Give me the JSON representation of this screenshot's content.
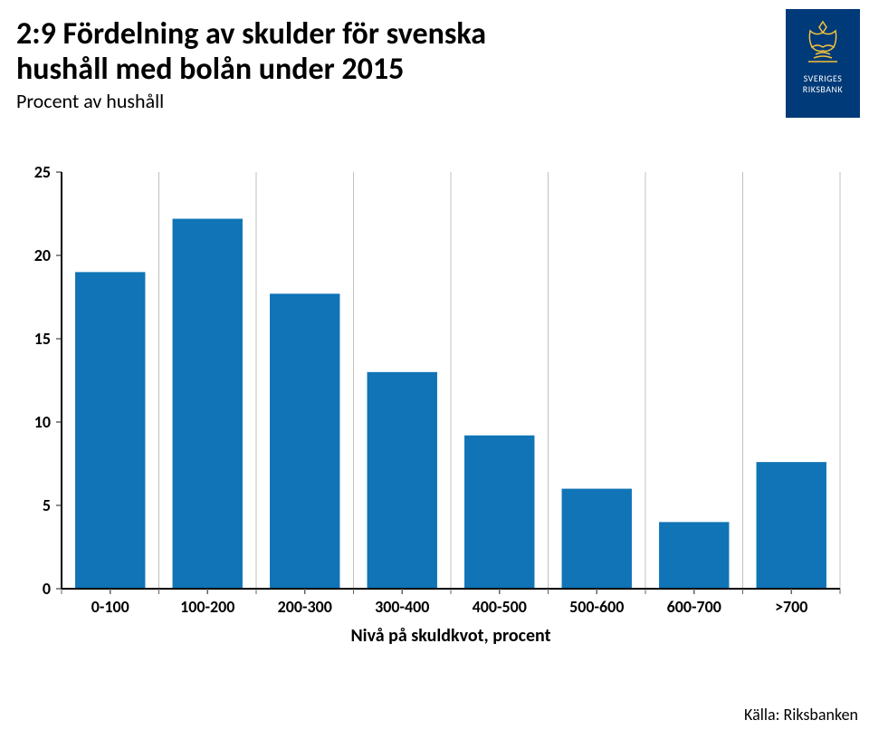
{
  "title_line1": "2:9 Fördelning av skulder för svenska",
  "title_line2": "hushåll med bolån under 2015",
  "subtitle": "Procent av hushåll",
  "logo": {
    "line1": "SVERIGES",
    "line2": "RIKSBANK",
    "bg": "#003a78",
    "crest_color": "#f5c23b"
  },
  "source": "Källa: Riksbanken",
  "chart": {
    "type": "bar",
    "categories": [
      "0-100",
      "100-200",
      "200-300",
      "300-400",
      "400-500",
      "500-600",
      "600-700",
      ">700"
    ],
    "values": [
      19,
      22.2,
      17.7,
      13,
      9.2,
      6,
      4,
      7.6
    ],
    "bar_color": "#1074b6",
    "ylim": [
      0,
      25
    ],
    "ytick_step": 5,
    "yticks": [
      0,
      5,
      10,
      15,
      20,
      25
    ],
    "axis_color": "#000000",
    "grid_color": "#c0c0c0",
    "tick_color": "#646464",
    "background_color": "#ffffff",
    "bar_width_ratio": 0.72,
    "xlabel": "Nivå på skuldkvot, procent",
    "ylabel_fontsize": 18,
    "xlabel_fontsize": 20,
    "tick_fontsize": 18,
    "tick_fontweight": 700,
    "axis_line_width": 2
  }
}
